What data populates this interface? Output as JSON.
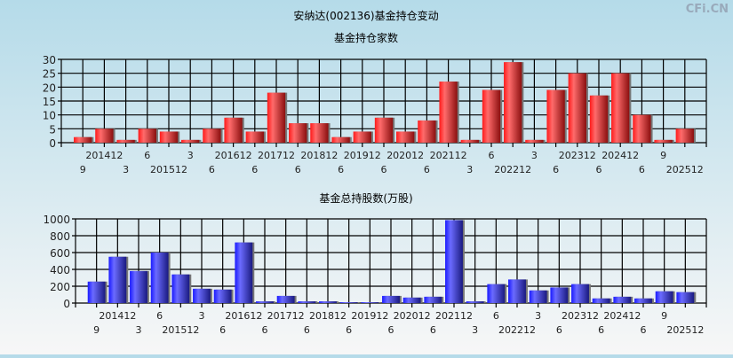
{
  "title": "安纳达(002136)基金持仓变动",
  "watermark": "CFi.CN",
  "colors": {
    "top_bar": "#e8222a",
    "bottom_bar": "#2a2ae8"
  },
  "chart_data": [
    {
      "type": "bar",
      "title": "基金持仓家数",
      "categories": [
        "9",
        "201412",
        "3",
        "6",
        "201512",
        "3",
        "6",
        "201612",
        "6",
        "201712",
        "6",
        "201812",
        "6",
        "201912",
        "6",
        "202012",
        "6",
        "202112",
        "3",
        "6",
        "202212",
        "3",
        "6",
        "202312",
        "6",
        "202412",
        "6",
        "9",
        "202512"
      ],
      "values": [
        2,
        5,
        1,
        5,
        4,
        1,
        5,
        9,
        4,
        18,
        7,
        7,
        2,
        4,
        9,
        4,
        8,
        22,
        1,
        19,
        29,
        1,
        19,
        25,
        17,
        25,
        10,
        1,
        5
      ],
      "ylim": [
        0,
        30
      ],
      "yticks": [
        0,
        5,
        10,
        15,
        20,
        25,
        30
      ],
      "grid": true
    },
    {
      "type": "bar",
      "title": "基金总持股数(万股)",
      "categories": [
        "9",
        "201412",
        "3",
        "6",
        "201512",
        "3",
        "6",
        "201612",
        "6",
        "201712",
        "6",
        "201812",
        "6",
        "201912",
        "6",
        "202012",
        "6",
        "202112",
        "3",
        "6",
        "202212",
        "3",
        "6",
        "202312",
        "6",
        "202412",
        "6",
        "9",
        "202512"
      ],
      "values": [
        255,
        550,
        380,
        600,
        340,
        170,
        160,
        720,
        20,
        85,
        20,
        20,
        10,
        10,
        85,
        65,
        75,
        985,
        20,
        225,
        280,
        150,
        185,
        225,
        55,
        75,
        55,
        140,
        130
      ],
      "ylim": [
        0,
        1000
      ],
      "yticks": [
        0,
        200,
        400,
        600,
        800,
        1000
      ],
      "grid": true
    }
  ]
}
